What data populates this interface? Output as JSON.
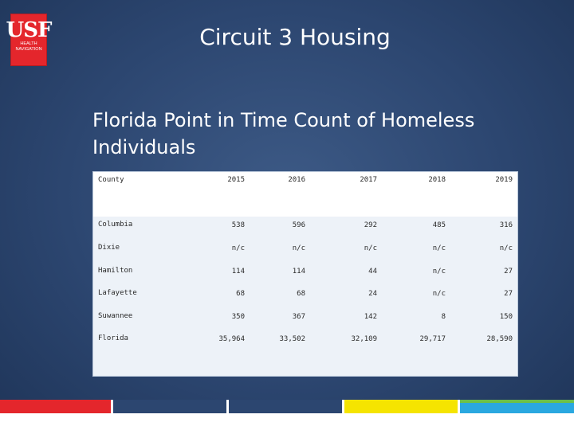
{
  "logo": {
    "mark": "USF",
    "sub_line1": "HEALTH",
    "sub_line2": "NAVIGATION"
  },
  "header": {
    "title": "Circuit 3 Housing"
  },
  "main": {
    "subtitle_line1": "Florida  Point in Time Count of Homeless",
    "subtitle_line2": "Individuals"
  },
  "table": {
    "county_header": "County",
    "years": [
      "2015",
      "2016",
      "2017",
      "2018",
      "2019"
    ],
    "rows": [
      {
        "county": "Columbia",
        "values": [
          "538",
          "596",
          "292",
          "485",
          "316"
        ]
      },
      {
        "county": "Dixie",
        "values": [
          "n/c",
          "n/c",
          "n/c",
          "n/c",
          "n/c"
        ]
      },
      {
        "county": "Hamilton",
        "values": [
          "114",
          "114",
          "44",
          "n/c",
          "27"
        ]
      },
      {
        "county": "Lafayette",
        "values": [
          "68",
          "68",
          "24",
          "n/c",
          "27"
        ]
      },
      {
        "county": "Suwannee",
        "values": [
          "350",
          "367",
          "142",
          "8",
          "150"
        ]
      },
      {
        "county": "Florida",
        "values": [
          "35,964",
          "33,502",
          "32,109",
          "29,717",
          "28,590"
        ]
      }
    ]
  },
  "footer": {
    "bar_colors": [
      "#e4262c",
      "#2c4670",
      "#2c4670",
      "#f5e400",
      "#6cc04a",
      "#2aa8e0"
    ]
  }
}
